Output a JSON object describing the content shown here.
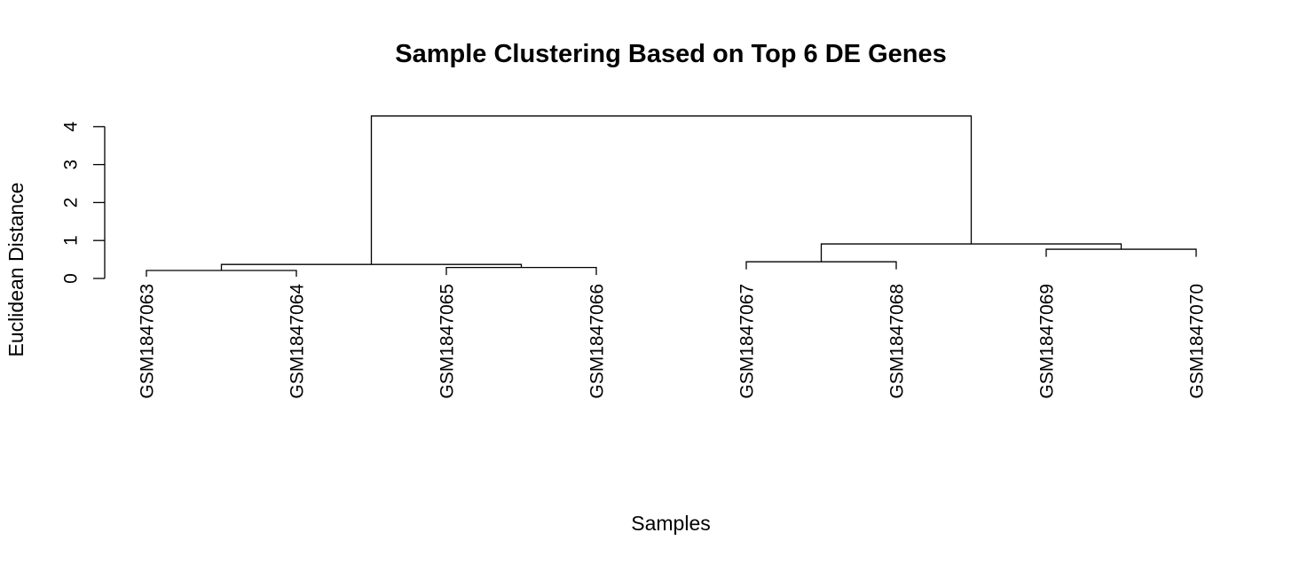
{
  "chart_data": {
    "type": "dendrogram",
    "title": "Sample Clustering Based on Top 6 DE Genes",
    "xlabel": "Samples",
    "ylabel": "Euclidean Distance",
    "ylim": [
      0,
      4.5
    ],
    "yticks": [
      0,
      1,
      2,
      3,
      4
    ],
    "leaves": [
      "GSM1847063",
      "GSM1847064",
      "GSM1847065",
      "GSM1847066",
      "GSM1847067",
      "GSM1847068",
      "GSM1847069",
      "GSM1847070"
    ],
    "merges": [
      {
        "id": "m1",
        "left": "GSM1847063",
        "right": "GSM1847064",
        "height": 0.21
      },
      {
        "id": "m2",
        "left": "GSM1847065",
        "right": "GSM1847066",
        "height": 0.29
      },
      {
        "id": "m3",
        "left": "m1",
        "right": "m2",
        "height": 0.37
      },
      {
        "id": "m4",
        "left": "GSM1847067",
        "right": "GSM1847068",
        "height": 0.44
      },
      {
        "id": "m5",
        "left": "GSM1847069",
        "right": "GSM1847070",
        "height": 0.77
      },
      {
        "id": "m6",
        "left": "m4",
        "right": "m5",
        "height": 0.91
      },
      {
        "id": "m7",
        "left": "m3",
        "right": "m6",
        "height": 4.28
      }
    ],
    "leaf_baseline": 0.2
  }
}
